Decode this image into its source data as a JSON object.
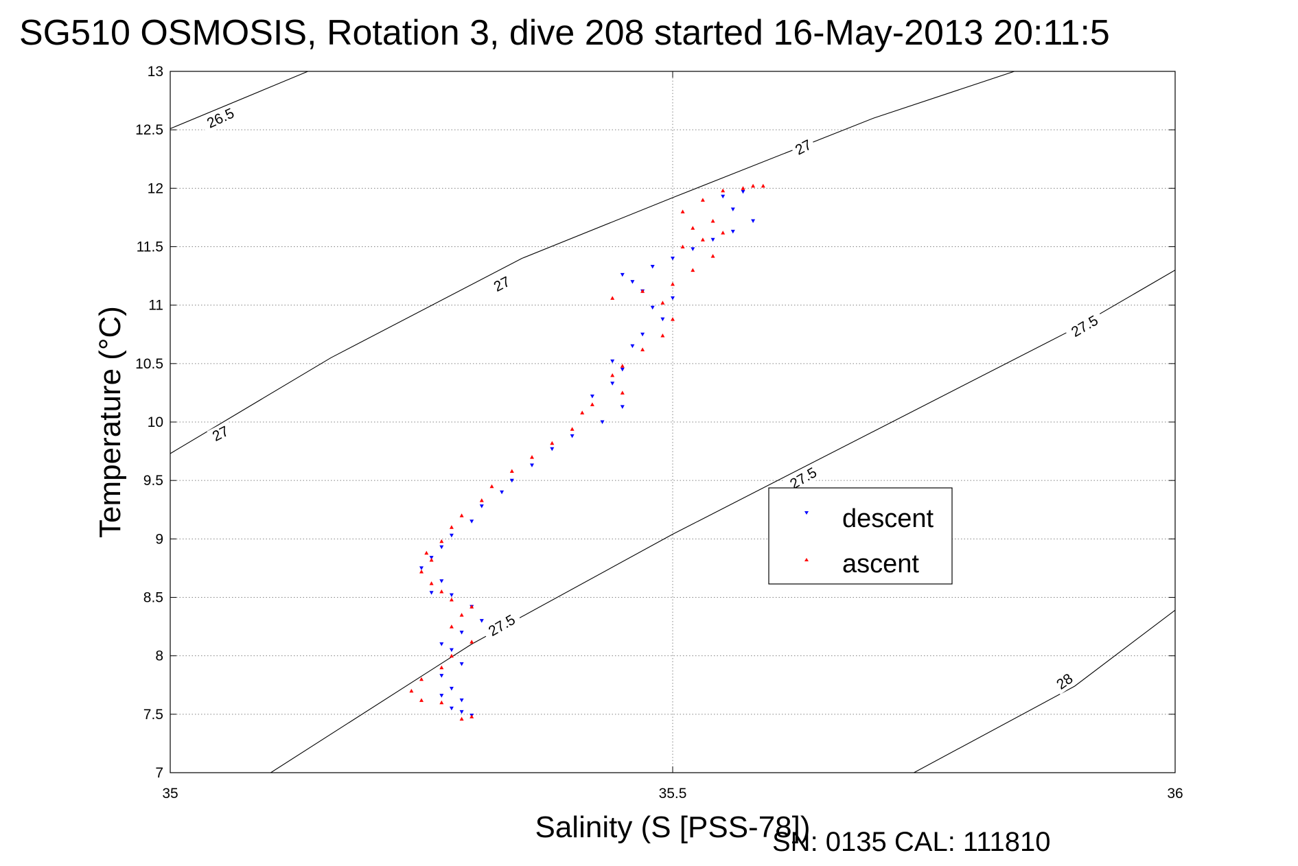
{
  "header": {
    "title": "SG510 OSMOSIS, Rotation 3, dive 208 started 16-May-2013 20:11:5"
  },
  "footer": {
    "serial": "SN: 0135  CAL: 111810"
  },
  "colors": {
    "descent": "#0000ff",
    "ascent": "#ff0000",
    "axes": "#000000",
    "grid": "#808080",
    "contour": "#000000"
  },
  "chart_data": {
    "type": "scatter",
    "title": "SG510 OSMOSIS, Rotation 3, dive 208 started 16-May-2013 20:11:5",
    "xlabel": "Salinity (S [PSS-78])",
    "ylabel": "Temperature (°C)",
    "xlim": [
      35,
      36
    ],
    "ylim": [
      7,
      13
    ],
    "xticks": [
      "35",
      "35.5",
      "36"
    ],
    "yticks": [
      "7",
      "7.5",
      "8",
      "8.5",
      "9",
      "9.5",
      "10",
      "10.5",
      "11",
      "11.5",
      "12",
      "12.5",
      "13"
    ],
    "grid": true,
    "legend_position": "right-center",
    "density_contours": [
      {
        "level": "26.5",
        "points": [
          [
            35.0,
            12.51
          ],
          [
            35.137,
            13.0
          ]
        ]
      },
      {
        "level": "27",
        "points": [
          [
            35.0,
            9.73
          ],
          [
            35.16,
            10.55
          ],
          [
            35.35,
            11.4
          ],
          [
            35.5,
            11.92
          ],
          [
            35.7,
            12.6
          ],
          [
            35.84,
            13.0
          ]
        ]
      },
      {
        "level": "27.5",
        "points": [
          [
            35.1,
            7.0
          ],
          [
            35.3,
            8.1
          ],
          [
            35.5,
            9.04
          ],
          [
            35.7,
            9.92
          ],
          [
            35.9,
            10.8
          ],
          [
            36.0,
            11.3
          ]
        ]
      },
      {
        "level": "28",
        "points": [
          [
            35.74,
            7.0
          ],
          [
            35.9,
            7.74
          ],
          [
            36.0,
            8.39
          ]
        ]
      }
    ],
    "contour_labels": [
      {
        "text": "26.5",
        "x": 35.05,
        "y": 12.6,
        "angle": -25
      },
      {
        "text": "27",
        "x": 35.05,
        "y": 9.9,
        "angle": -27
      },
      {
        "text": "27",
        "x": 35.33,
        "y": 11.18,
        "angle": -27
      },
      {
        "text": "27",
        "x": 35.63,
        "y": 12.35,
        "angle": -27
      },
      {
        "text": "27.5",
        "x": 35.33,
        "y": 8.26,
        "angle": -30
      },
      {
        "text": "27.5",
        "x": 35.63,
        "y": 9.52,
        "angle": -30
      },
      {
        "text": "27.5",
        "x": 35.91,
        "y": 10.82,
        "angle": -30
      },
      {
        "text": "28",
        "x": 35.89,
        "y": 7.78,
        "angle": -35
      }
    ],
    "series": [
      {
        "name": "descent",
        "marker": "triangle-down",
        "values": [
          [
            35.3,
            7.49
          ],
          [
            35.29,
            7.52
          ],
          [
            35.28,
            7.55
          ],
          [
            35.29,
            7.62
          ],
          [
            35.27,
            7.66
          ],
          [
            35.28,
            7.72
          ],
          [
            35.27,
            7.83
          ],
          [
            35.29,
            7.93
          ],
          [
            35.28,
            8.05
          ],
          [
            35.27,
            8.1
          ],
          [
            35.29,
            8.2
          ],
          [
            35.31,
            8.3
          ],
          [
            35.3,
            8.42
          ],
          [
            35.28,
            8.52
          ],
          [
            35.26,
            8.54
          ],
          [
            35.27,
            8.64
          ],
          [
            35.25,
            8.75
          ],
          [
            35.26,
            8.84
          ],
          [
            35.27,
            8.93
          ],
          [
            35.28,
            9.03
          ],
          [
            35.3,
            9.15
          ],
          [
            35.31,
            9.28
          ],
          [
            35.33,
            9.4
          ],
          [
            35.34,
            9.5
          ],
          [
            35.36,
            9.63
          ],
          [
            35.38,
            9.77
          ],
          [
            35.4,
            9.88
          ],
          [
            35.43,
            10.0
          ],
          [
            35.45,
            10.13
          ],
          [
            35.42,
            10.22
          ],
          [
            35.44,
            10.33
          ],
          [
            35.45,
            10.45
          ],
          [
            35.44,
            10.52
          ],
          [
            35.46,
            10.65
          ],
          [
            35.47,
            10.75
          ],
          [
            35.49,
            10.88
          ],
          [
            35.48,
            10.98
          ],
          [
            35.5,
            11.06
          ],
          [
            35.47,
            11.12
          ],
          [
            35.46,
            11.2
          ],
          [
            35.45,
            11.26
          ],
          [
            35.48,
            11.33
          ],
          [
            35.5,
            11.4
          ],
          [
            35.52,
            11.48
          ],
          [
            35.54,
            11.56
          ],
          [
            35.56,
            11.63
          ],
          [
            35.58,
            11.72
          ],
          [
            35.56,
            11.82
          ],
          [
            35.55,
            11.93
          ],
          [
            35.57,
            11.97
          ]
        ]
      },
      {
        "name": "ascent",
        "marker": "triangle-up",
        "values": [
          [
            35.29,
            7.46
          ],
          [
            35.3,
            7.48
          ],
          [
            35.27,
            7.6
          ],
          [
            35.25,
            7.62
          ],
          [
            35.24,
            7.7
          ],
          [
            35.25,
            7.8
          ],
          [
            35.27,
            7.9
          ],
          [
            35.28,
            8.0
          ],
          [
            35.3,
            8.12
          ],
          [
            35.28,
            8.25
          ],
          [
            35.29,
            8.35
          ],
          [
            35.3,
            8.42
          ],
          [
            35.28,
            8.48
          ],
          [
            35.27,
            8.55
          ],
          [
            35.26,
            8.62
          ],
          [
            35.25,
            8.72
          ],
          [
            35.26,
            8.82
          ],
          [
            35.255,
            8.88
          ],
          [
            35.27,
            8.98
          ],
          [
            35.28,
            9.1
          ],
          [
            35.29,
            9.2
          ],
          [
            35.31,
            9.33
          ],
          [
            35.32,
            9.45
          ],
          [
            35.34,
            9.58
          ],
          [
            35.36,
            9.7
          ],
          [
            35.38,
            9.82
          ],
          [
            35.4,
            9.94
          ],
          [
            35.41,
            10.08
          ],
          [
            35.42,
            10.15
          ],
          [
            35.45,
            10.25
          ],
          [
            35.44,
            10.4
          ],
          [
            35.45,
            10.48
          ],
          [
            35.47,
            10.62
          ],
          [
            35.49,
            10.74
          ],
          [
            35.5,
            10.88
          ],
          [
            35.49,
            11.02
          ],
          [
            35.44,
            11.06
          ],
          [
            35.47,
            11.12
          ],
          [
            35.5,
            11.18
          ],
          [
            35.52,
            11.3
          ],
          [
            35.54,
            11.42
          ],
          [
            35.51,
            11.5
          ],
          [
            35.53,
            11.56
          ],
          [
            35.55,
            11.62
          ],
          [
            35.52,
            11.66
          ],
          [
            35.54,
            11.72
          ],
          [
            35.51,
            11.8
          ],
          [
            35.53,
            11.9
          ],
          [
            35.55,
            11.98
          ],
          [
            35.57,
            12.0
          ],
          [
            35.58,
            12.02
          ],
          [
            35.59,
            12.02
          ]
        ]
      }
    ]
  }
}
